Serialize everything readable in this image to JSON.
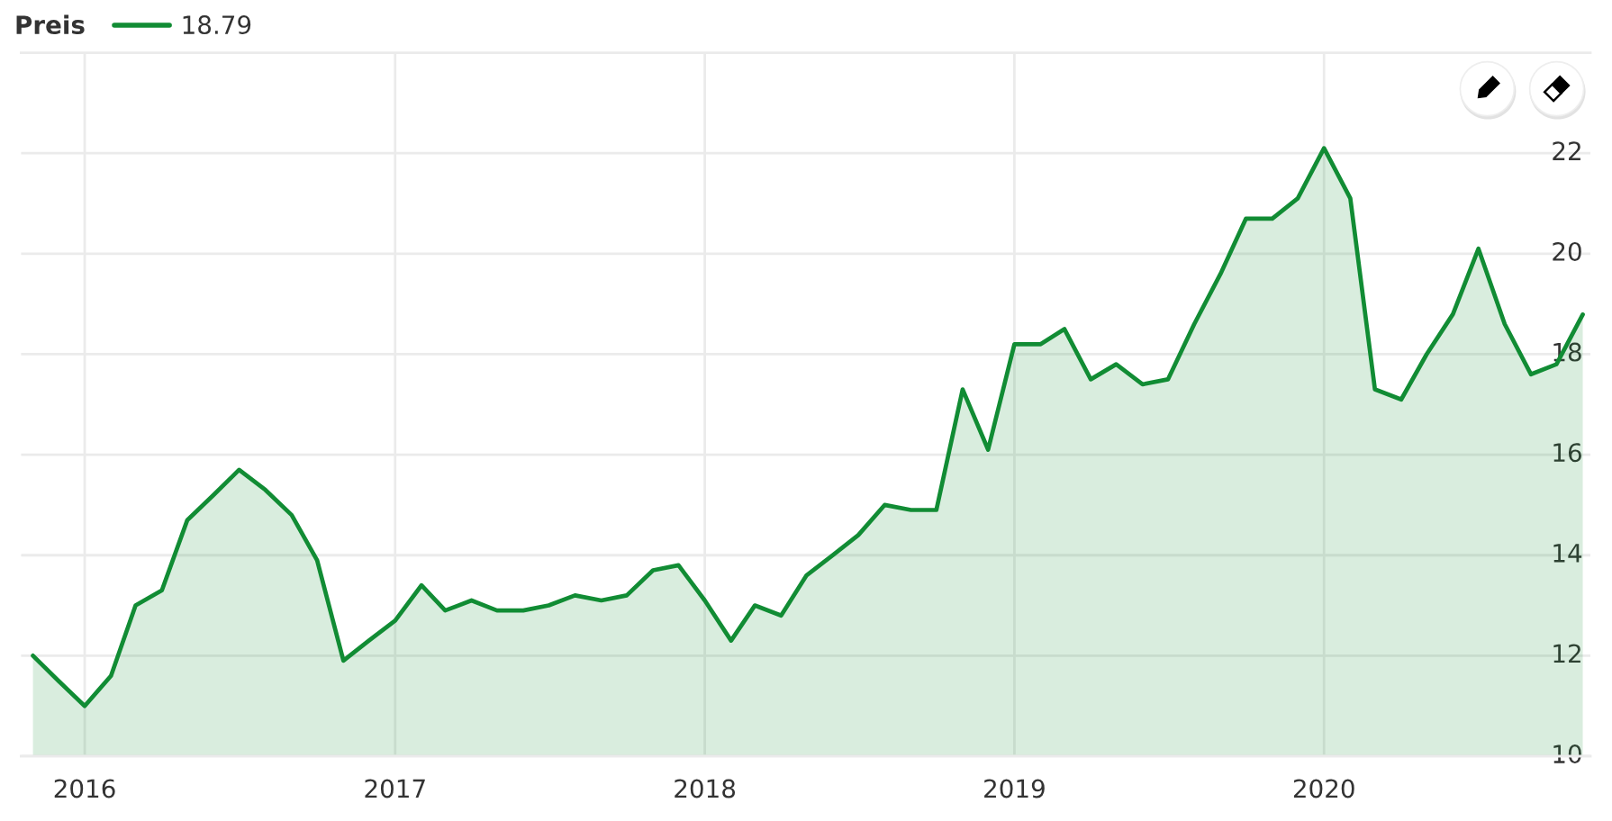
{
  "chart_data": {
    "type": "area",
    "legend_title": "Preis",
    "x": [
      "2015-11",
      "2015-12",
      "2016-01",
      "2016-02",
      "2016-03",
      "2016-04",
      "2016-05",
      "2016-06",
      "2016-07",
      "2016-08",
      "2016-09",
      "2016-10",
      "2016-11",
      "2016-12",
      "2017-01",
      "2017-02",
      "2017-03",
      "2017-04",
      "2017-05",
      "2017-06",
      "2017-07",
      "2017-08",
      "2017-09",
      "2017-10",
      "2017-11",
      "2017-12",
      "2018-01",
      "2018-02",
      "2018-03",
      "2018-04",
      "2018-05",
      "2018-06",
      "2018-07",
      "2018-08",
      "2018-09",
      "2018-10",
      "2018-11",
      "2018-12",
      "2019-01",
      "2019-02",
      "2019-03",
      "2019-04",
      "2019-05",
      "2019-06",
      "2019-07",
      "2019-08",
      "2019-09",
      "2019-10",
      "2019-11",
      "2019-12",
      "2020-01",
      "2020-02",
      "2020-03",
      "2020-04",
      "2020-05",
      "2020-06",
      "2020-07",
      "2020-08",
      "2020-09",
      "2020-10",
      "2020-11"
    ],
    "series": [
      {
        "name": "18.79",
        "color": "#118c34",
        "values": [
          12.0,
          11.5,
          11.0,
          11.6,
          13.0,
          13.3,
          14.7,
          15.2,
          15.7,
          15.3,
          14.8,
          13.9,
          11.9,
          12.3,
          12.7,
          13.4,
          12.9,
          13.1,
          12.9,
          12.9,
          13.0,
          13.2,
          13.1,
          13.2,
          13.7,
          13.8,
          13.1,
          12.3,
          13.0,
          12.8,
          13.6,
          14.0,
          14.4,
          15.0,
          14.9,
          14.9,
          17.3,
          16.1,
          18.2,
          18.2,
          18.5,
          17.5,
          17.8,
          17.4,
          17.5,
          18.6,
          19.6,
          20.7,
          20.7,
          21.1,
          22.1,
          21.1,
          17.3,
          17.1,
          18.0,
          18.8,
          20.1,
          18.6,
          17.6,
          17.8,
          18.79
        ]
      }
    ],
    "xlim": [
      "2015-10-18",
      "2020-11-10"
    ],
    "xticks": [
      "2016",
      "2017",
      "2018",
      "2019",
      "2020"
    ],
    "ylim": [
      10,
      24
    ],
    "yticks": [
      10,
      12,
      14,
      16,
      18,
      20,
      22,
      {
        "value": 24,
        "label": null
      }
    ],
    "grid": true,
    "legend": "top left"
  }
}
